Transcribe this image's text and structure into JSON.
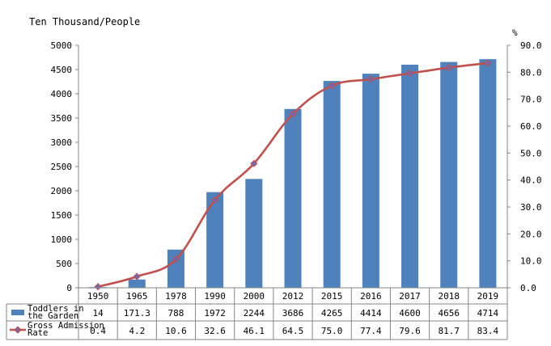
{
  "chart_data": {
    "type": "bar",
    "categories": [
      "1950",
      "1965",
      "1978",
      "1990",
      "2000",
      "2012",
      "2015",
      "2016",
      "2017",
      "2018",
      "2019"
    ],
    "series": [
      {
        "name": "Toddlers in the Garden",
        "type": "bar",
        "axis": "left",
        "color": "#4f81bd",
        "values": [
          14,
          171.3,
          788,
          1972,
          2244,
          3686,
          4265,
          4414,
          4600,
          4656,
          4714
        ],
        "labels": [
          "14",
          "171.3",
          "788",
          "1972",
          "2244",
          "3686",
          "4265",
          "4414",
          "4600",
          "4656",
          "4714"
        ]
      },
      {
        "name": "Gross Admission Rate",
        "type": "line",
        "axis": "right",
        "color": "#c0504d",
        "values": [
          0.4,
          4.2,
          10.6,
          32.6,
          46.1,
          64.5,
          75.0,
          77.4,
          79.6,
          81.7,
          83.4
        ],
        "labels": [
          "0.4",
          "4.2",
          "10.6",
          "32.6",
          "46.1",
          "64.5",
          "75.0",
          "77.4",
          "79.6",
          "81.7",
          "83.4"
        ]
      }
    ],
    "legend_table_labels": [
      "Toddlers in the Garden",
      "Gross Admission Rate"
    ],
    "ylabel": "Ten Thousand/People",
    "ylabel_right": "%",
    "ylim": [
      0,
      5000
    ],
    "ylim_right": [
      0,
      90
    ],
    "yticks": [
      "0",
      "500",
      "1000",
      "1500",
      "2000",
      "2500",
      "3000",
      "3500",
      "4000",
      "4500",
      "5000"
    ],
    "yticks_right": [
      "0.0",
      "10.0",
      "20.0",
      "30.0",
      "40.0",
      "50.0",
      "60.0",
      "70.0",
      "80.0",
      "90.0"
    ],
    "grid": false,
    "legend": "data-table"
  }
}
